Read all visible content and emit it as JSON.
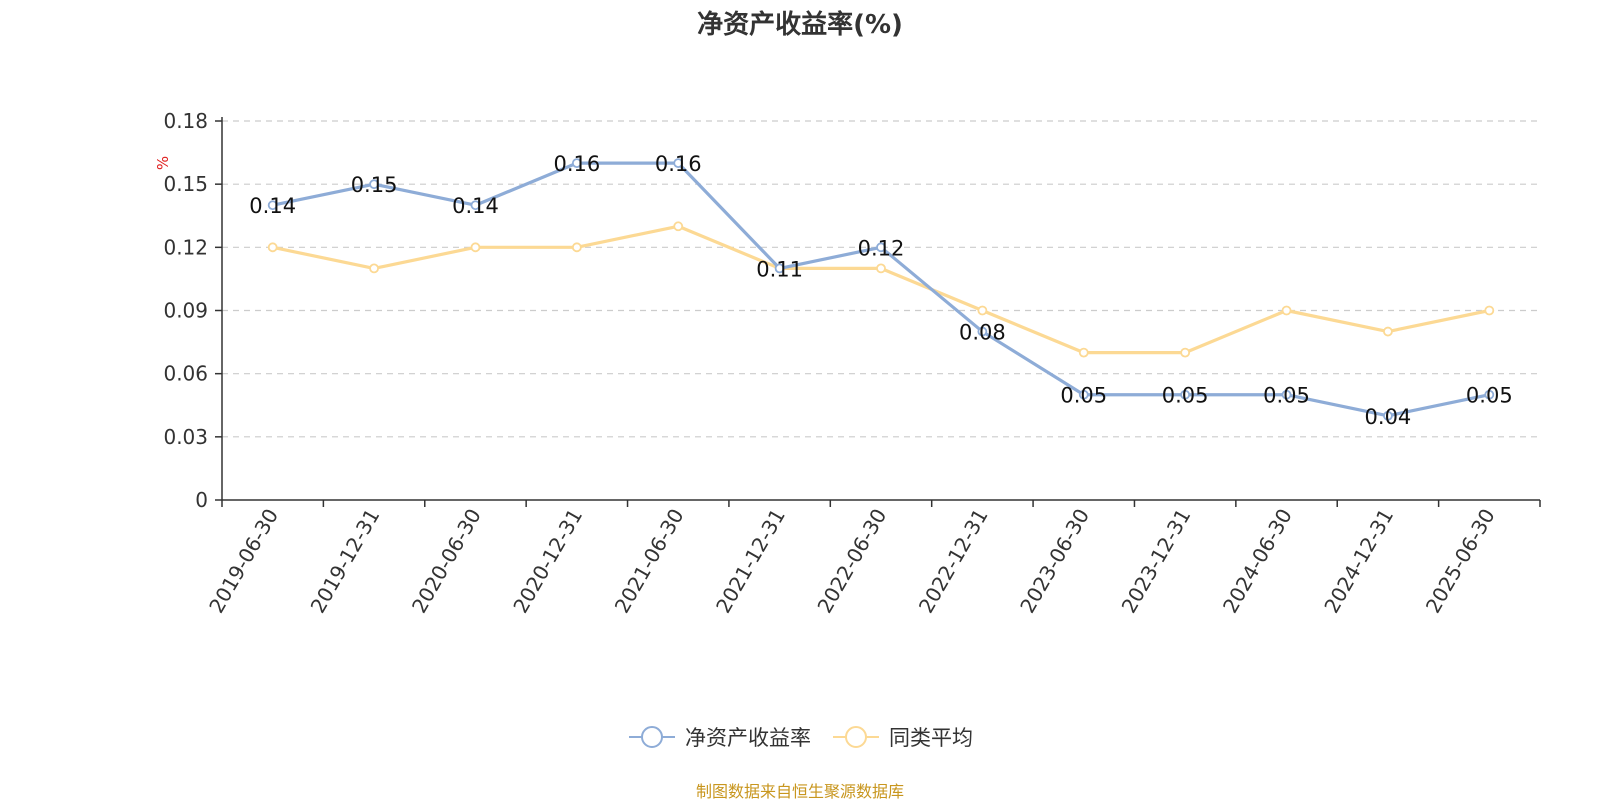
{
  "chart_data": {
    "type": "line",
    "title": "净资产收益率(%)",
    "ylabel": "%",
    "xlabel": "",
    "categories": [
      "2019-06-30",
      "2019-12-31",
      "2020-06-30",
      "2020-12-31",
      "2021-06-30",
      "2021-12-31",
      "2022-06-30",
      "2022-12-31",
      "2023-06-30",
      "2023-12-31",
      "2024-06-30",
      "2024-12-31",
      "2025-06-30"
    ],
    "series": [
      {
        "name": "净资产收益率",
        "color": "#8eacd7",
        "values": [
          0.14,
          0.15,
          0.14,
          0.16,
          0.16,
          0.11,
          0.12,
          0.08,
          0.05,
          0.05,
          0.05,
          0.04,
          0.05
        ],
        "data_labels": [
          "0.14",
          "0.15",
          "0.14",
          "0.16",
          "0.16",
          "0.11",
          "0.12",
          "0.08",
          "0.05",
          "0.05",
          "0.05",
          "0.04",
          "0.05"
        ]
      },
      {
        "name": "同类平均",
        "color": "#fcd994",
        "values": [
          0.12,
          0.11,
          0.12,
          0.12,
          0.13,
          0.11,
          0.11,
          0.09,
          0.07,
          0.07,
          0.09,
          0.08,
          0.09
        ]
      }
    ],
    "ylim": [
      0,
      0.18
    ],
    "yticks": [
      "0",
      "0.03",
      "0.06",
      "0.09",
      "0.12",
      "0.15",
      "0.18"
    ],
    "grid": true,
    "legend_position": "bottom"
  },
  "source_note": "制图数据来自恒生聚源数据库"
}
